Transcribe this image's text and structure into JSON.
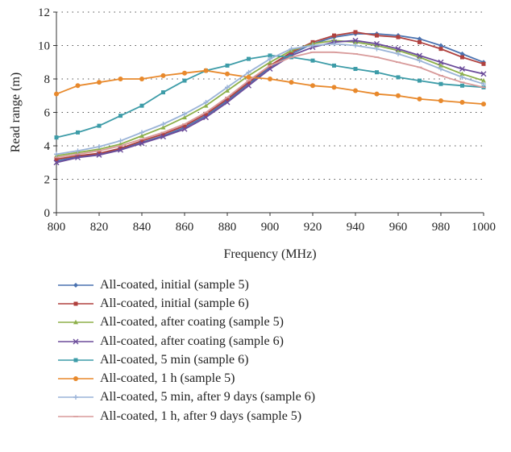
{
  "chart_data": {
    "type": "line",
    "title": "",
    "xlabel": "Frequency (MHz)",
    "ylabel": "Read range (m)",
    "xlim": [
      800,
      1000
    ],
    "ylim": [
      0,
      12
    ],
    "xticks": [
      800,
      820,
      840,
      860,
      880,
      900,
      920,
      940,
      960,
      980,
      1000
    ],
    "yticks": [
      0,
      2,
      4,
      6,
      8,
      10,
      12
    ],
    "grid": "horizontal dotted",
    "legend_position": "bottom",
    "x": [
      800,
      810,
      820,
      830,
      840,
      850,
      860,
      870,
      880,
      890,
      900,
      910,
      920,
      930,
      940,
      950,
      960,
      970,
      980,
      990,
      1000
    ],
    "series": [
      {
        "name": "All-coated, initial (sample 5)",
        "color": "#4a72b0",
        "marker": "diamond",
        "values": [
          3.1,
          3.35,
          3.5,
          3.8,
          4.2,
          4.6,
          5.1,
          5.8,
          6.7,
          7.7,
          8.7,
          9.5,
          10.1,
          10.5,
          10.7,
          10.7,
          10.6,
          10.4,
          10.0,
          9.5,
          9.0
        ]
      },
      {
        "name": "All-coated, initial (sample 6)",
        "color": "#b0413e",
        "marker": "square",
        "values": [
          3.2,
          3.4,
          3.55,
          3.85,
          4.3,
          4.7,
          5.2,
          5.9,
          6.8,
          7.8,
          8.8,
          9.6,
          10.2,
          10.6,
          10.8,
          10.6,
          10.5,
          10.2,
          9.8,
          9.3,
          8.9
        ]
      },
      {
        "name": "All-coated, after coating (sample 5)",
        "color": "#8db04a",
        "marker": "triangle",
        "values": [
          3.4,
          3.6,
          3.8,
          4.1,
          4.6,
          5.1,
          5.7,
          6.4,
          7.3,
          8.2,
          9.0,
          9.7,
          10.1,
          10.3,
          10.2,
          10.0,
          9.7,
          9.3,
          8.8,
          8.3,
          7.9
        ]
      },
      {
        "name": "All-coated, after coating (sample 6)",
        "color": "#6b4c9a",
        "marker": "x",
        "values": [
          3.0,
          3.3,
          3.45,
          3.75,
          4.15,
          4.55,
          5.0,
          5.7,
          6.6,
          7.6,
          8.6,
          9.4,
          9.9,
          10.2,
          10.3,
          10.1,
          9.8,
          9.4,
          9.0,
          8.6,
          8.3
        ]
      },
      {
        "name": "All-coated, 5 min (sample 6)",
        "color": "#3d9ca8",
        "marker": "square",
        "values": [
          4.5,
          4.8,
          5.2,
          5.8,
          6.4,
          7.2,
          7.9,
          8.5,
          8.8,
          9.2,
          9.4,
          9.3,
          9.1,
          8.8,
          8.6,
          8.4,
          8.1,
          7.9,
          7.7,
          7.6,
          7.5
        ]
      },
      {
        "name": "All-coated, 1 h (sample 5)",
        "color": "#e8892c",
        "marker": "circle",
        "values": [
          7.1,
          7.6,
          7.8,
          8.0,
          8.0,
          8.2,
          8.35,
          8.5,
          8.3,
          8.1,
          8.0,
          7.8,
          7.6,
          7.5,
          7.3,
          7.1,
          7.0,
          6.8,
          6.7,
          6.6,
          6.5
        ]
      },
      {
        "name": "All-coated, 5 min, after 9 days (sample 6)",
        "color": "#9ab3d8",
        "marker": "plus",
        "values": [
          3.5,
          3.7,
          3.95,
          4.3,
          4.8,
          5.3,
          5.9,
          6.6,
          7.5,
          8.4,
          9.2,
          9.8,
          10.0,
          10.1,
          10.0,
          9.8,
          9.5,
          9.1,
          8.6,
          8.1,
          7.7
        ]
      },
      {
        "name": "All-coated, 1 h, after 9 days (sample 5)",
        "color": "#d89a9a",
        "marker": "dash",
        "values": [
          3.3,
          3.5,
          3.7,
          4.0,
          4.4,
          4.8,
          5.3,
          6.0,
          6.9,
          7.9,
          8.8,
          9.3,
          9.6,
          9.6,
          9.5,
          9.3,
          9.0,
          8.7,
          8.2,
          7.8,
          7.5
        ]
      }
    ]
  }
}
